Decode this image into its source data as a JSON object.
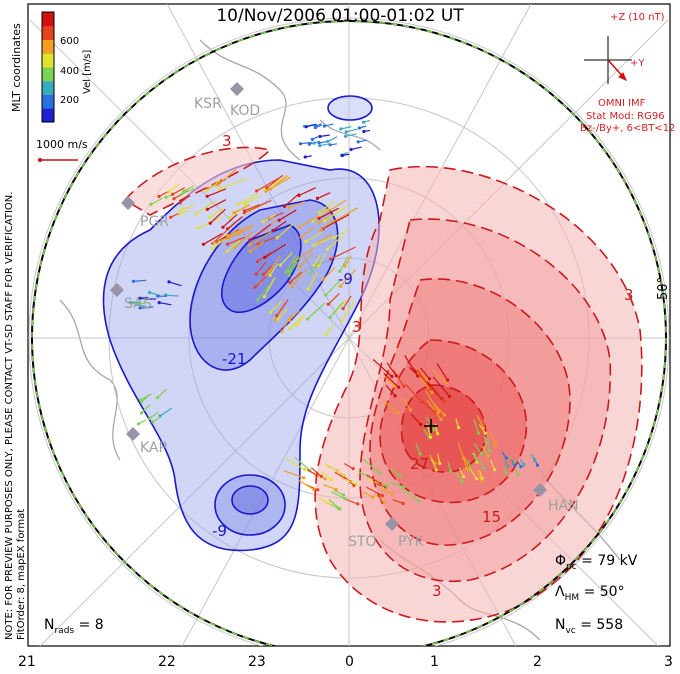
{
  "title": "10/Nov/2006 01:00-01:02 UT",
  "coordinates_label": "MLT coordinates",
  "note_preview": "NOTE: FOR PREVIEW PURPOSES ONLY, PLEASE CONTACT VT-SD STAFF FOR VERIFICATION.",
  "note_fit": "FitOrder: 8, mapEX format",
  "colorbar": {
    "label": "Vel [m/s]",
    "ticks": [
      "600",
      "400",
      "200"
    ],
    "colors": [
      "#2020d0",
      "#2b6fe0",
      "#3aaac0",
      "#7ed050",
      "#e0e030",
      "#f0a020",
      "#e84020",
      "#d01010"
    ]
  },
  "scale_vector_label": "1000 m/s",
  "imf": {
    "z_label": "+Z (10 nT)",
    "y_label": "+Y",
    "source": "OMNI IMF",
    "model": "Stat Mod: RG96",
    "condition": "Bz-/By+, 6<BT<12"
  },
  "latitude_label": "50°",
  "stations": [
    "KSR",
    "KOD",
    "PGR",
    "SAS",
    "KAP",
    "STO",
    "PYK",
    "HAN"
  ],
  "contour_labels": {
    "negative": [
      "-9",
      "-21",
      "-9"
    ],
    "positive": [
      "3",
      "3",
      "3",
      "15",
      "27",
      "3",
      "3"
    ]
  },
  "stats": {
    "phi_symbol": "Φ",
    "phi_sub": "pc",
    "phi_value": "= 79 kV",
    "lambda_symbol": "Λ",
    "lambda_sub": "HM",
    "lambda_value": "= 50°",
    "nvc_symbol": "N",
    "nvc_sub": "vc",
    "nvc_value": "= 558",
    "nrads_symbol": "N",
    "nrads_sub": "rads",
    "nrads_value": "= 8"
  },
  "mlt_labels": [
    "21",
    "22",
    "23",
    "0",
    "1",
    "2",
    "3"
  ],
  "colors": {
    "negative_contour": "#1a1acc",
    "positive_contour": "#cc1a1a",
    "negative_fill": "#9aa4ec",
    "positive_fill": "#f29090"
  }
}
